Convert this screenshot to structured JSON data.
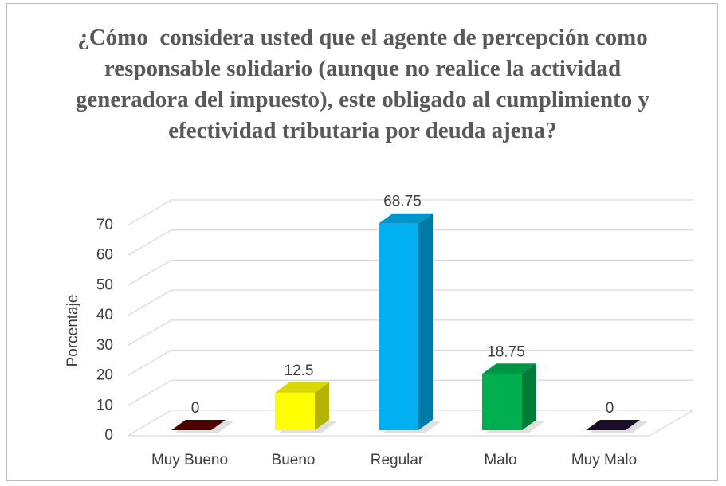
{
  "chart_data": {
    "type": "bar3d",
    "title": "¿Cómo  considera usted que el agente de percepción como responsable solidario (aunque no realice la actividad generadora del impuesto), este obligado al cumplimiento y efectividad tributaria por deuda ajena?",
    "y_label": "Porcentaje",
    "categories": [
      "Muy Bueno",
      "Bueno",
      "Regular",
      "Malo",
      "Muy Malo"
    ],
    "values": [
      0,
      12.5,
      68.75,
      18.75,
      0
    ],
    "colors": [
      "#5c0000",
      "#ffff00",
      "#00b0f0",
      "#00b050",
      "#20102e"
    ],
    "ylim": [
      0,
      70
    ],
    "yticks": [
      0,
      10,
      20,
      30,
      40,
      50,
      60,
      70
    ],
    "grid": true
  }
}
